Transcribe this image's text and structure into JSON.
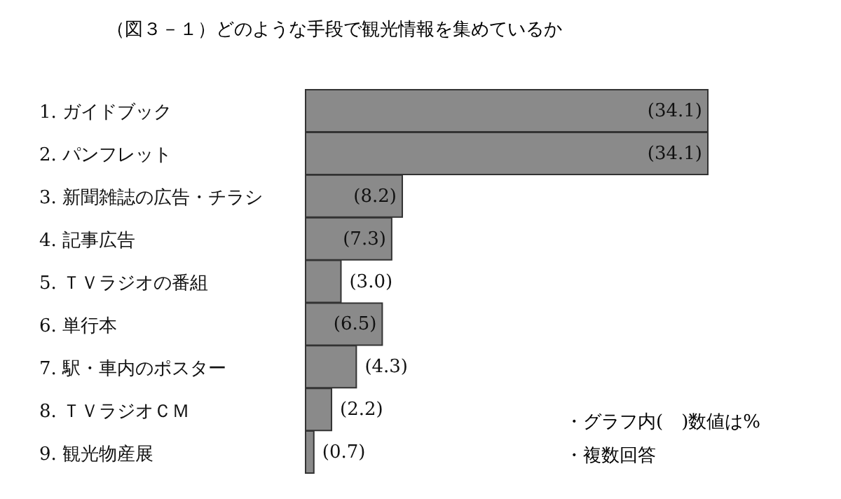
{
  "chart_data": {
    "type": "bar",
    "orientation": "horizontal",
    "title": "（図３－１）どのような手段で観光情報を集めているか",
    "categories": [
      "1. ガイドブック",
      "2. パンフレット",
      "3. 新聞雑誌の広告・チラシ",
      "4. 記事広告",
      "5. ＴＶラジオの番組",
      "6. 単行本",
      "7. 駅・車内のポスター",
      "8. ＴＶラジオＣＭ",
      "9. 観光物産展"
    ],
    "values": [
      34.1,
      34.1,
      8.2,
      7.3,
      3.0,
      6.5,
      4.3,
      2.2,
      0.7
    ],
    "value_labels": [
      "(34.1)",
      "(34.1)",
      "(8.2)",
      "(7.3)",
      "(3.0)",
      "(6.5)",
      "(4.3)",
      "(2.2)",
      "(0.7)"
    ],
    "color": "#8a8a8a",
    "annotations": [
      "・グラフ内(　)数値は%",
      "・複数回答"
    ]
  }
}
